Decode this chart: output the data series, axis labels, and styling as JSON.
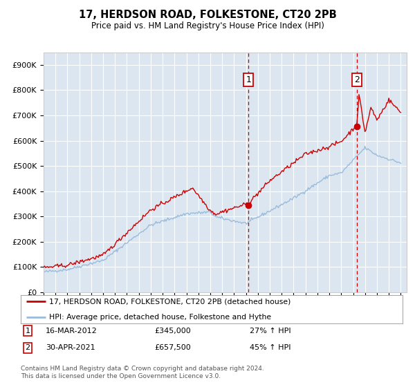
{
  "title": "17, HERDSON ROAD, FOLKESTONE, CT20 2PB",
  "subtitle": "Price paid vs. HM Land Registry's House Price Index (HPI)",
  "ylabel_values": [
    "£0",
    "£100K",
    "£200K",
    "£300K",
    "£400K",
    "£500K",
    "£600K",
    "£700K",
    "£800K",
    "£900K"
  ],
  "ylim": [
    0,
    950000
  ],
  "yticks": [
    0,
    100000,
    200000,
    300000,
    400000,
    500000,
    600000,
    700000,
    800000,
    900000
  ],
  "xstart_year": 1995,
  "xend_year": 2025,
  "background_color": "#dce6f0",
  "sale1_date": "16-MAR-2012",
  "sale1_price": 345000,
  "sale1_price_str": "£345,000",
  "sale1_pct": "27% ↑ HPI",
  "sale2_date": "30-APR-2021",
  "sale2_price": 657500,
  "sale2_price_str": "£657,500",
  "sale2_pct": "45% ↑ HPI",
  "legend_line1": "17, HERDSON ROAD, FOLKESTONE, CT20 2PB (detached house)",
  "legend_line2": "HPI: Average price, detached house, Folkestone and Hythe",
  "footnote": "Contains HM Land Registry data © Crown copyright and database right 2024.\nThis data is licensed under the Open Government Licence v3.0.",
  "red_color": "#cc0000",
  "blue_color": "#99bbdd",
  "sale1_x": 2012.21,
  "sale2_x": 2021.33
}
